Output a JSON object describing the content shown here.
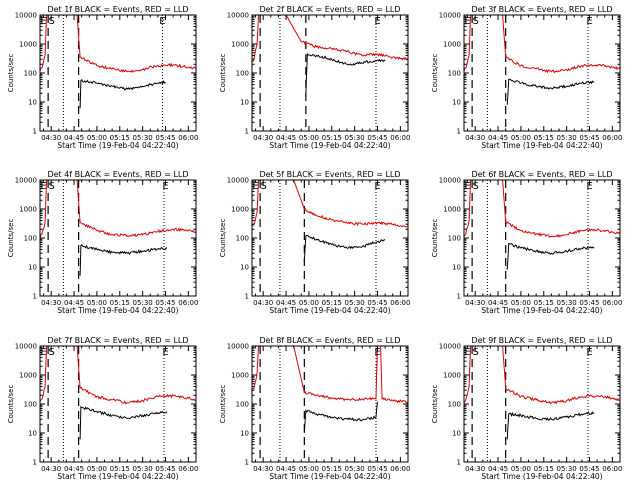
{
  "figure": {
    "title_template": "Det {det} BLACK = Events, RED = LLD",
    "xlabel": "Start Time (19-Feb-04 04:22:40)",
    "ylabel": "Counts/sec",
    "colors": {
      "events": "#000000",
      "lld": "#e00000",
      "axes": "#000000"
    }
  },
  "chart_data": [
    {
      "det": "1f",
      "type": "line",
      "title": "Det 1f BLACK = Events, RED = LLD",
      "xlabel": "Start Time (19-Feb-04 04:22:40)",
      "ylabel": "Counts/sec",
      "x_ticks": [
        "04:30",
        "04:45",
        "05:00",
        "05:15",
        "05:30",
        "05:45",
        "06:00"
      ],
      "y_ticks": [
        "1",
        "10",
        "100",
        "1000",
        "10000"
      ],
      "yscale": "log",
      "ylim": [
        1,
        10000
      ],
      "xlim": [
        "04:22:40",
        "06:05:00"
      ],
      "markers": {
        "E_left": "04:25",
        "S": "04:29",
        "E_right": "05:43"
      },
      "dashed_lines": [
        "04:28",
        "04:48"
      ],
      "dotted_lines": [
        "04:38",
        "05:43"
      ],
      "series": [
        {
          "name": "Events",
          "x": [
            "04:49",
            "04:49:30",
            "05:00",
            "05:10",
            "05:20",
            "05:30",
            "05:40",
            "05:45"
          ],
          "values": [
            6,
            55,
            45,
            35,
            28,
            35,
            45,
            48
          ]
        },
        {
          "name": "LLD",
          "x": [
            "04:22:40",
            "04:24",
            "04:26",
            "04:27",
            "04:28",
            "04:47",
            "04:49",
            "05:00",
            "05:10",
            "05:20",
            "05:30",
            "05:40",
            "05:50",
            "06:00",
            "06:05"
          ],
          "values": [
            120,
            150,
            400,
            10000,
            10000,
            10000,
            350,
            180,
            140,
            110,
            130,
            180,
            190,
            160,
            140
          ]
        }
      ]
    },
    {
      "det": "2f",
      "type": "line",
      "title": "Det 2f BLACK = Events, RED = LLD",
      "xlabel": "Start Time (19-Feb-04 04:22:40)",
      "ylabel": "Counts/sec",
      "x_ticks": [
        "04:30",
        "04:45",
        "05:00",
        "05:15",
        "05:30",
        "05:45",
        "06:00"
      ],
      "y_ticks": [
        "1",
        "10",
        "100",
        "1000",
        "10000"
      ],
      "yscale": "log",
      "ylim": [
        1,
        10000
      ],
      "xlim": [
        "04:22:40",
        "06:05:00"
      ],
      "markers": {
        "E_left": "",
        "S": "",
        "E_right": "05:45"
      },
      "dashed_lines": [
        "04:28",
        "04:58"
      ],
      "dotted_lines": [
        "04:41",
        "05:44"
      ],
      "series": [
        {
          "name": "Events",
          "x": [
            "04:58",
            "04:59",
            "05:05",
            "05:15",
            "05:25",
            "05:35",
            "05:45",
            "05:50"
          ],
          "values": [
            20,
            450,
            400,
            300,
            200,
            220,
            280,
            260
          ]
        },
        {
          "name": "LLD",
          "x": [
            "04:22:40",
            "04:24",
            "04:26",
            "04:27",
            "04:28",
            "04:40",
            "04:45",
            "04:55",
            "05:05",
            "05:15",
            "05:25",
            "05:35",
            "05:45",
            "05:55",
            "06:05"
          ],
          "values": [
            250,
            300,
            1000,
            10000,
            10000,
            10000,
            10000,
            1200,
            800,
            700,
            550,
            400,
            450,
            350,
            300
          ]
        }
      ]
    },
    {
      "det": "3f",
      "type": "line",
      "title": "Det 3f BLACK = Events, RED = LLD",
      "xlabel": "Start Time (19-Feb-04 04:22:40)",
      "ylabel": "Counts/sec",
      "x_ticks": [
        "04:30",
        "04:45",
        "05:00",
        "05:15",
        "05:30",
        "05:45",
        "06:00"
      ],
      "y_ticks": [
        "1",
        "10",
        "100",
        "1000",
        "10000"
      ],
      "yscale": "log",
      "ylim": [
        1,
        10000
      ],
      "xlim": [
        "04:22:40",
        "06:05:00"
      ],
      "markers": {
        "E_left": "04:25",
        "S": "04:29",
        "E_right": "05:45"
      },
      "dashed_lines": [
        "04:28",
        "04:50"
      ],
      "dotted_lines": [
        "04:38",
        "05:44"
      ],
      "series": [
        {
          "name": "Events",
          "x": [
            "04:51",
            "04:52",
            "05:00",
            "05:10",
            "05:20",
            "05:30",
            "05:40",
            "05:48"
          ],
          "values": [
            8,
            60,
            45,
            35,
            30,
            35,
            45,
            50
          ]
        },
        {
          "name": "LLD",
          "x": [
            "04:22:40",
            "04:24",
            "04:26",
            "04:27",
            "04:28",
            "04:48",
            "04:50",
            "05:00",
            "05:10",
            "05:20",
            "05:30",
            "05:40",
            "05:50",
            "06:00",
            "06:05"
          ],
          "values": [
            120,
            150,
            400,
            10000,
            10000,
            10000,
            350,
            180,
            140,
            110,
            130,
            180,
            190,
            160,
            140
          ]
        }
      ]
    },
    {
      "det": "4f",
      "type": "line",
      "title": "Det 4f BLACK = Events, RED = LLD",
      "xlabel": "Start Time (19-Feb-04 04:22:40)",
      "ylabel": "Counts/sec",
      "x_ticks": [
        "04:30",
        "04:45",
        "05:00",
        "05:15",
        "05:30",
        "05:45",
        "06:00"
      ],
      "y_ticks": [
        "1",
        "10",
        "100",
        "1000",
        "10000"
      ],
      "yscale": "log",
      "ylim": [
        1,
        10000
      ],
      "xlim": [
        "04:22:40",
        "06:05:00"
      ],
      "markers": {
        "E_left": "04:25",
        "S": "04:29",
        "E_right": "05:45"
      },
      "dashed_lines": [
        "04:28",
        "04:48"
      ],
      "dotted_lines": [
        "04:38",
        "05:44"
      ],
      "series": [
        {
          "name": "Events",
          "x": [
            "04:49",
            "04:49:30",
            "05:00",
            "05:10",
            "05:20",
            "05:30",
            "05:40",
            "05:46"
          ],
          "values": [
            5,
            55,
            40,
            32,
            30,
            35,
            42,
            45
          ]
        },
        {
          "name": "LLD",
          "x": [
            "04:22:40",
            "04:24",
            "04:26",
            "04:27",
            "04:28",
            "04:47",
            "04:49",
            "05:00",
            "05:10",
            "05:20",
            "05:30",
            "05:40",
            "05:50",
            "06:00",
            "06:05"
          ],
          "values": [
            100,
            140,
            350,
            10000,
            10000,
            10000,
            350,
            180,
            130,
            120,
            130,
            170,
            200,
            190,
            150
          ]
        }
      ]
    },
    {
      "det": "5f",
      "type": "line",
      "title": "Det 5f BLACK = Events, RED = LLD",
      "xlabel": "Start Time (19-Feb-04 04:22:40)",
      "ylabel": "Counts/sec",
      "x_ticks": [
        "04:30",
        "04:45",
        "05:00",
        "05:15",
        "05:30",
        "05:45",
        "06:00"
      ],
      "y_ticks": [
        "1",
        "10",
        "100",
        "1000",
        "10000"
      ],
      "yscale": "log",
      "ylim": [
        1,
        10000
      ],
      "xlim": [
        "04:22:40",
        "06:05:00"
      ],
      "markers": {
        "E_left": "04:25",
        "S": "04:29",
        "E_right": "05:45"
      },
      "dashed_lines": [
        "04:28",
        "04:57"
      ],
      "dotted_lines": [
        "04:41",
        "05:44"
      ],
      "series": [
        {
          "name": "Events",
          "x": [
            "04:57",
            "04:58",
            "05:05",
            "05:15",
            "05:25",
            "05:35",
            "05:45",
            "05:50"
          ],
          "values": [
            15,
            120,
            90,
            60,
            45,
            50,
            75,
            85
          ]
        },
        {
          "name": "LLD",
          "x": [
            "04:22:40",
            "04:24",
            "04:26",
            "04:27",
            "04:28",
            "04:50",
            "04:57",
            "05:05",
            "05:15",
            "05:25",
            "05:35",
            "05:45",
            "05:55",
            "06:05"
          ],
          "values": [
            250,
            300,
            800,
            10000,
            10000,
            10000,
            1000,
            600,
            420,
            330,
            300,
            340,
            300,
            240
          ]
        }
      ]
    },
    {
      "det": "6f",
      "type": "line",
      "title": "Det 6f BLACK = Events, RED = LLD",
      "xlabel": "Start Time (19-Feb-04 04:22:40)",
      "ylabel": "Counts/sec",
      "x_ticks": [
        "04:30",
        "04:45",
        "05:00",
        "05:15",
        "05:30",
        "05:45",
        "06:00"
      ],
      "y_ticks": [
        "1",
        "10",
        "100",
        "1000",
        "10000"
      ],
      "yscale": "log",
      "ylim": [
        1,
        10000
      ],
      "xlim": [
        "04:22:40",
        "06:05:00"
      ],
      "markers": {
        "E_left": "04:25",
        "S": "04:29",
        "E_right": "05:45"
      },
      "dashed_lines": [
        "04:28",
        "04:50"
      ],
      "dotted_lines": [
        "04:38",
        "05:44"
      ],
      "series": [
        {
          "name": "Events",
          "x": [
            "04:51",
            "04:52",
            "05:00",
            "05:10",
            "05:20",
            "05:30",
            "05:40",
            "05:48"
          ],
          "values": [
            8,
            65,
            45,
            35,
            30,
            35,
            45,
            48
          ]
        },
        {
          "name": "LLD",
          "x": [
            "04:22:40",
            "04:24",
            "04:26",
            "04:27",
            "04:28",
            "04:48",
            "04:50",
            "05:00",
            "05:10",
            "05:20",
            "05:30",
            "05:40",
            "05:50",
            "06:00",
            "06:05"
          ],
          "values": [
            120,
            150,
            400,
            10000,
            10000,
            10000,
            350,
            180,
            140,
            110,
            130,
            180,
            190,
            160,
            140
          ]
        }
      ]
    },
    {
      "det": "7f",
      "type": "line",
      "title": "Det 7f BLACK = Events, RED = LLD",
      "xlabel": "Start Time (19-Feb-04 04:22:40)",
      "ylabel": "Counts/sec",
      "x_ticks": [
        "04:30",
        "04:45",
        "05:00",
        "05:15",
        "05:30",
        "05:45",
        "06:00"
      ],
      "y_ticks": [
        "1",
        "10",
        "100",
        "1000",
        "10000"
      ],
      "yscale": "log",
      "ylim": [
        1,
        10000
      ],
      "xlim": [
        "04:22:40",
        "06:05:00"
      ],
      "markers": {
        "E_left": "04:25",
        "S": "04:29",
        "E_right": "05:45"
      },
      "dashed_lines": [
        "04:28",
        "04:48"
      ],
      "dotted_lines": [
        "04:38",
        "05:44"
      ],
      "series": [
        {
          "name": "Events",
          "x": [
            "04:49",
            "04:49:30",
            "05:00",
            "05:10",
            "05:20",
            "05:30",
            "05:40",
            "05:46"
          ],
          "values": [
            6,
            80,
            55,
            40,
            32,
            40,
            50,
            55
          ]
        },
        {
          "name": "LLD",
          "x": [
            "04:22:40",
            "04:24",
            "04:26",
            "04:27",
            "04:28",
            "04:47",
            "04:49",
            "05:00",
            "05:10",
            "05:20",
            "05:30",
            "05:40",
            "05:50",
            "06:00",
            "06:05"
          ],
          "values": [
            120,
            150,
            400,
            10000,
            10000,
            10000,
            350,
            180,
            140,
            110,
            130,
            180,
            190,
            160,
            140
          ]
        }
      ]
    },
    {
      "det": "8f",
      "type": "line",
      "title": "Det 8f BLACK = Events, RED = LLD",
      "xlabel": "Start Time (19-Feb-04 04:22:40)",
      "ylabel": "Counts/sec",
      "x_ticks": [
        "04:30",
        "04:45",
        "05:00",
        "05:15",
        "05:30",
        "05:45",
        "06:00"
      ],
      "y_ticks": [
        "1",
        "10",
        "100",
        "1000",
        "10000"
      ],
      "yscale": "log",
      "ylim": [
        1,
        10000
      ],
      "xlim": [
        "04:22:40",
        "06:05:00"
      ],
      "markers": {
        "E_left": "",
        "S": "",
        "E_right": "05:45"
      },
      "dashed_lines": [
        "04:28",
        "04:57"
      ],
      "dotted_lines": [
        "04:41",
        "05:44"
      ],
      "series": [
        {
          "name": "Events",
          "x": [
            "04:57",
            "04:58",
            "05:05",
            "05:15",
            "05:25",
            "05:35",
            "05:44",
            "05:45"
          ],
          "values": [
            10,
            60,
            45,
            35,
            30,
            28,
            35,
            120
          ]
        },
        {
          "name": "LLD",
          "x": [
            "04:22:40",
            "04:24",
            "04:26",
            "04:27",
            "04:28",
            "04:50",
            "04:57",
            "05:05",
            "05:15",
            "05:25",
            "05:35",
            "05:44",
            "05:45",
            "05:47",
            "05:48",
            "05:55",
            "06:05"
          ],
          "values": [
            300,
            350,
            1200,
            10000,
            10000,
            10000,
            250,
            200,
            160,
            140,
            150,
            150,
            10000,
            10000,
            150,
            130,
            120
          ]
        }
      ]
    },
    {
      "det": "9f",
      "type": "line",
      "title": "Det 9f BLACK = Events, RED = LLD",
      "xlabel": "Start Time (19-Feb-04 04:22:40)",
      "ylabel": "Counts/sec",
      "x_ticks": [
        "04:30",
        "04:45",
        "05:00",
        "05:15",
        "05:30",
        "05:45",
        "06:00"
      ],
      "y_ticks": [
        "1",
        "10",
        "100",
        "1000",
        "10000"
      ],
      "yscale": "log",
      "ylim": [
        1,
        10000
      ],
      "xlim": [
        "04:22:40",
        "06:05:00"
      ],
      "markers": {
        "E_left": "04:25",
        "S": "04:29",
        "E_right": "05:45"
      },
      "dashed_lines": [
        "04:28",
        "04:50"
      ],
      "dotted_lines": [
        "04:38",
        "05:44"
      ],
      "series": [
        {
          "name": "Events",
          "x": [
            "04:51",
            "04:52",
            "05:00",
            "05:10",
            "05:20",
            "05:30",
            "05:40",
            "05:48"
          ],
          "values": [
            6,
            45,
            40,
            32,
            30,
            35,
            45,
            50
          ]
        },
        {
          "name": "LLD",
          "x": [
            "04:22:40",
            "04:24",
            "04:26",
            "04:27",
            "04:28",
            "04:48",
            "04:50",
            "05:00",
            "05:10",
            "05:20",
            "05:30",
            "05:40",
            "05:50",
            "06:00",
            "06:05"
          ],
          "values": [
            120,
            150,
            400,
            10000,
            10000,
            10000,
            350,
            180,
            140,
            110,
            130,
            180,
            190,
            160,
            140
          ]
        }
      ]
    }
  ]
}
